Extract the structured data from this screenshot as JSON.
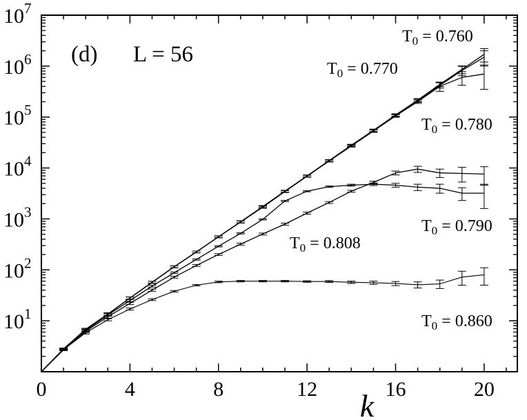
{
  "chart_data": {
    "type": "line",
    "panel_label": "(d)",
    "size_label": "L = 56",
    "xlabel": "k",
    "ylabel": "",
    "xlim": [
      0,
      21.5
    ],
    "ylim_log10": [
      0,
      7
    ],
    "yscale": "log",
    "grid": false,
    "x_ticks": [
      "0",
      "4",
      "8",
      "12",
      "16",
      "20"
    ],
    "x_tick_values": [
      0,
      4,
      8,
      12,
      16,
      20
    ],
    "y_ticks": [
      {
        "base": "10",
        "exp": "1"
      },
      {
        "base": "10",
        "exp": "2"
      },
      {
        "base": "10",
        "exp": "3"
      },
      {
        "base": "10",
        "exp": "4"
      },
      {
        "base": "10",
        "exp": "5"
      },
      {
        "base": "10",
        "exp": "6"
      },
      {
        "base": "10",
        "exp": "7"
      }
    ],
    "x": [
      0,
      1,
      2,
      3,
      4,
      5,
      6,
      7,
      8,
      9,
      10,
      11,
      12,
      13,
      14,
      15,
      16,
      17,
      18,
      19,
      20
    ],
    "series": [
      {
        "label_main": "T",
        "label_sub": "0",
        "label_value": " = 0.760",
        "values": [
          1,
          2.8,
          6.8,
          13.5,
          28,
          57,
          115,
          225,
          445,
          880,
          1750,
          3500,
          7000,
          14000,
          28000,
          55000,
          110000,
          215000,
          440000,
          860000,
          1700000
        ],
        "errors": [
          0,
          0.1,
          0.3,
          0.8,
          1.4,
          2.5,
          5,
          9,
          18,
          40,
          80,
          150,
          300,
          600,
          1200,
          3000,
          6000,
          15000,
          45000,
          150000,
          500000
        ]
      },
      {
        "label_main": "T",
        "label_sub": "0",
        "label_value": " = 0.770",
        "values": [
          1,
          2.8,
          6.8,
          13.5,
          28,
          57,
          115,
          225,
          445,
          870,
          1700,
          3450,
          6900,
          13800,
          27500,
          54000,
          108000,
          210000,
          420000,
          820000,
          1500000
        ],
        "errors": [
          0,
          0.1,
          0.3,
          0.8,
          1.4,
          2.5,
          5,
          9,
          18,
          40,
          80,
          150,
          300,
          600,
          1200,
          3000,
          6000,
          15000,
          50000,
          170000,
          500000
        ]
      },
      {
        "label_main": "T",
        "label_sub": "0",
        "label_value": " = 0.780",
        "values": [
          1,
          2.8,
          6.8,
          13.5,
          28,
          57,
          115,
          225,
          445,
          870,
          1700,
          3450,
          6900,
          13700,
          27000,
          53000,
          105000,
          200000,
          400000,
          600000,
          700000
        ],
        "errors": [
          0,
          0.1,
          0.3,
          0.8,
          1.4,
          2.5,
          5,
          9,
          18,
          40,
          80,
          150,
          300,
          600,
          1200,
          3000,
          6000,
          15000,
          80000,
          180000,
          350000
        ]
      },
      {
        "label_main": "T",
        "label_sub": "0",
        "label_value": " = 0.790",
        "values": [
          1,
          2.7,
          6.2,
          12,
          22,
          40,
          72,
          122,
          200,
          320,
          505,
          790,
          1300,
          2100,
          3500,
          5200,
          8000,
          9500,
          8000,
          7800,
          7600
        ],
        "errors": [
          0,
          0.1,
          0.3,
          0.7,
          1.2,
          2,
          3,
          5,
          8,
          14,
          22,
          35,
          60,
          90,
          150,
          300,
          700,
          1300,
          1500,
          2500,
          3000
        ]
      },
      {
        "label_main": "T",
        "label_sub": "0",
        "label_value": " = 0.808",
        "values": [
          1,
          2.8,
          6.5,
          13,
          25,
          48,
          88,
          160,
          290,
          520,
          980,
          2250,
          3500,
          4300,
          4600,
          4800,
          4600,
          4200,
          4000,
          3200,
          3200
        ],
        "errors": [
          0,
          0.1,
          0.3,
          0.7,
          1.2,
          2,
          3,
          5,
          8,
          14,
          25,
          60,
          90,
          130,
          200,
          280,
          400,
          600,
          800,
          900,
          1600
        ]
      },
      {
        "label_main": "T",
        "label_sub": "0",
        "label_value": " = 0.860",
        "values": [
          1,
          2.7,
          5.8,
          10.5,
          17,
          26,
          38,
          50,
          58,
          60,
          60,
          60,
          59,
          59,
          57,
          56,
          54,
          51,
          53,
          72,
          80
        ],
        "errors": [
          0,
          0.1,
          0.3,
          0.5,
          0.8,
          1,
          1.3,
          1.5,
          2,
          2,
          2,
          2,
          2,
          2.5,
          3,
          4,
          5,
          7,
          10,
          22,
          30
        ]
      }
    ]
  }
}
